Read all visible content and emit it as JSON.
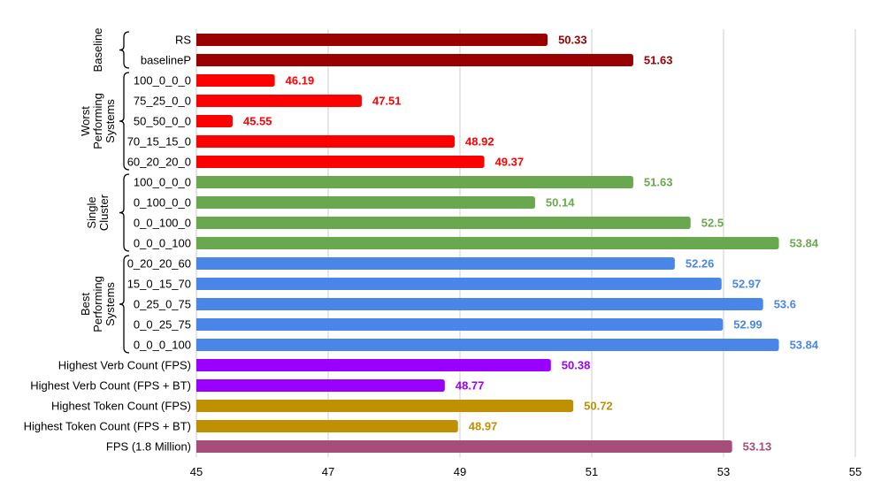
{
  "chart_data": {
    "type": "bar",
    "orientation": "horizontal",
    "title": "",
    "xlabel": "",
    "ylabel": "",
    "xlim": [
      45,
      55
    ],
    "xticks": [
      45,
      47,
      49,
      51,
      53,
      55
    ],
    "grid": "vertical",
    "legend": "none",
    "colors": {
      "baseline": "#990000",
      "worst": "#ff0000",
      "single": "#6aa84f",
      "best": "#4a86e8",
      "verb": "#9900ff",
      "token": "#bf9000",
      "fps": "#a64d79"
    },
    "bars": [
      {
        "label": "RS",
        "value": 50.33,
        "value_label": "50.33",
        "group": "baseline"
      },
      {
        "label": "baselineP",
        "value": 51.63,
        "value_label": "51.63",
        "group": "baseline"
      },
      {
        "label": "100_0_0_0",
        "value": 46.19,
        "value_label": "46.19",
        "group": "worst"
      },
      {
        "label": "75_25_0_0",
        "value": 47.51,
        "value_label": "47.51",
        "group": "worst"
      },
      {
        "label": "50_50_0_0",
        "value": 45.55,
        "value_label": "45.55",
        "group": "worst"
      },
      {
        "label": "70_15_15_0",
        "value": 48.92,
        "value_label": "48.92",
        "group": "worst"
      },
      {
        "label": "60_20_20_0",
        "value": 49.37,
        "value_label": "49.37",
        "group": "worst"
      },
      {
        "label": "100_0_0_0",
        "value": 51.63,
        "value_label": "51.63",
        "group": "single"
      },
      {
        "label": "0_100_0_0",
        "value": 50.14,
        "value_label": "50.14",
        "group": "single"
      },
      {
        "label": "0_0_100_0",
        "value": 52.5,
        "value_label": "52.5",
        "group": "single"
      },
      {
        "label": "0_0_0_100",
        "value": 53.84,
        "value_label": "53.84",
        "group": "single"
      },
      {
        "label": "0_20_20_60",
        "value": 52.26,
        "value_label": "52.26",
        "group": "best"
      },
      {
        "label": "15_0_15_70",
        "value": 52.97,
        "value_label": "52.97",
        "group": "best"
      },
      {
        "label": "0_25_0_75",
        "value": 53.6,
        "value_label": "53.6",
        "group": "best"
      },
      {
        "label": "0_0_25_75",
        "value": 52.99,
        "value_label": "52.99",
        "group": "best"
      },
      {
        "label": "0_0_0_100",
        "value": 53.84,
        "value_label": "53.84",
        "group": "best"
      },
      {
        "label": "Highest Verb Count (FPS)",
        "value": 50.38,
        "value_label": "50.38",
        "group": "verb"
      },
      {
        "label": "Highest Verb Count (FPS + BT)",
        "value": 48.77,
        "value_label": "48.77",
        "group": "verb"
      },
      {
        "label": "Highest Token Count (FPS)",
        "value": 50.72,
        "value_label": "50.72",
        "group": "token"
      },
      {
        "label": "Highest Token Count (FPS + BT)",
        "value": 48.97,
        "value_label": "48.97",
        "group": "token"
      },
      {
        "label": "FPS (1.8 Million)",
        "value": 53.13,
        "value_label": "53.13",
        "group": "fps"
      }
    ],
    "groups": [
      {
        "id": "baseline",
        "lines": [
          "Baseline"
        ],
        "first": 0,
        "last": 1
      },
      {
        "id": "worst",
        "lines": [
          "Worst",
          "Performing",
          "Systems"
        ],
        "first": 2,
        "last": 6
      },
      {
        "id": "single",
        "lines": [
          "Single",
          "Cluster"
        ],
        "first": 7,
        "last": 10
      },
      {
        "id": "best",
        "lines": [
          "Best",
          "Performing",
          "Systems"
        ],
        "first": 11,
        "last": 15
      }
    ]
  }
}
